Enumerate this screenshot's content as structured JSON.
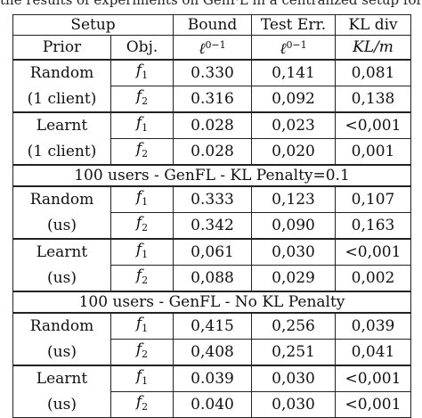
{
  "caption": "the results of experiments on GenFL in a centralized setup for comparison",
  "header": {
    "row1": {
      "setup": "Setup",
      "bound": "Bound",
      "test_err": "Test Err.",
      "kl_div": "KL div"
    },
    "row2": {
      "prior": "Prior",
      "obj": "Obj.",
      "bound_metric": "ℓ",
      "bound_sup": "0−1",
      "test_metric": "ℓ",
      "test_sup": "0−1",
      "kl_metric": "KL/m"
    }
  },
  "sections": [
    {
      "title": "",
      "groups": [
        {
          "prior": "Random",
          "prior_note": "(1 client)",
          "rows": [
            {
              "obj": "f",
              "obj_sub": "1",
              "bound": "0.330",
              "test_err": "0,141",
              "kl": "0,081"
            },
            {
              "obj": "f",
              "obj_sub": "2",
              "bound": "0.316",
              "test_err": "0,092",
              "kl": "0,138"
            }
          ]
        },
        {
          "prior": "Learnt",
          "prior_note": "(1 client)",
          "rows": [
            {
              "obj": "f",
              "obj_sub": "1",
              "bound": "0.028",
              "test_err": "0,023",
              "kl": "<0,001"
            },
            {
              "obj": "f",
              "obj_sub": "2",
              "bound": "0.028",
              "test_err": "0,020",
              "kl": "0,001"
            }
          ]
        }
      ]
    },
    {
      "title": "100 users - GenFL - KL Penalty=0.1",
      "groups": [
        {
          "prior": "Random",
          "prior_note": "(us)",
          "rows": [
            {
              "obj": "f",
              "obj_sub": "1",
              "bound": "0.333",
              "test_err": "0,123",
              "kl": "0,107"
            },
            {
              "obj": "f",
              "obj_sub": "2",
              "bound": "0.342",
              "test_err": "0,090",
              "kl": "0,163"
            }
          ]
        },
        {
          "prior": "Learnt",
          "prior_note": "(us)",
          "rows": [
            {
              "obj": "f",
              "obj_sub": "1",
              "bound": "0,061",
              "test_err": "0,030",
              "kl": "<0,001"
            },
            {
              "obj": "f",
              "obj_sub": "2",
              "bound": "0,088",
              "test_err": "0,029",
              "kl": "0,002"
            }
          ]
        }
      ]
    },
    {
      "title": "100 users - GenFL - No KL Penalty",
      "groups": [
        {
          "prior": "Random",
          "prior_note": "(us)",
          "rows": [
            {
              "obj": "f",
              "obj_sub": "1",
              "bound": "0,415",
              "test_err": "0,256",
              "kl": "0,039"
            },
            {
              "obj": "f",
              "obj_sub": "2",
              "bound": "0,408",
              "test_err": "0,251",
              "kl": "0,041"
            }
          ]
        },
        {
          "prior": "Learnt",
          "prior_note": "(us)",
          "rows": [
            {
              "obj": "f",
              "obj_sub": "1",
              "bound": "0.039",
              "test_err": "0,030",
              "kl": "<0,001"
            },
            {
              "obj": "f",
              "obj_sub": "2",
              "bound": "0.040",
              "test_err": "0,030",
              "kl": "<0,001"
            }
          ]
        }
      ]
    }
  ]
}
